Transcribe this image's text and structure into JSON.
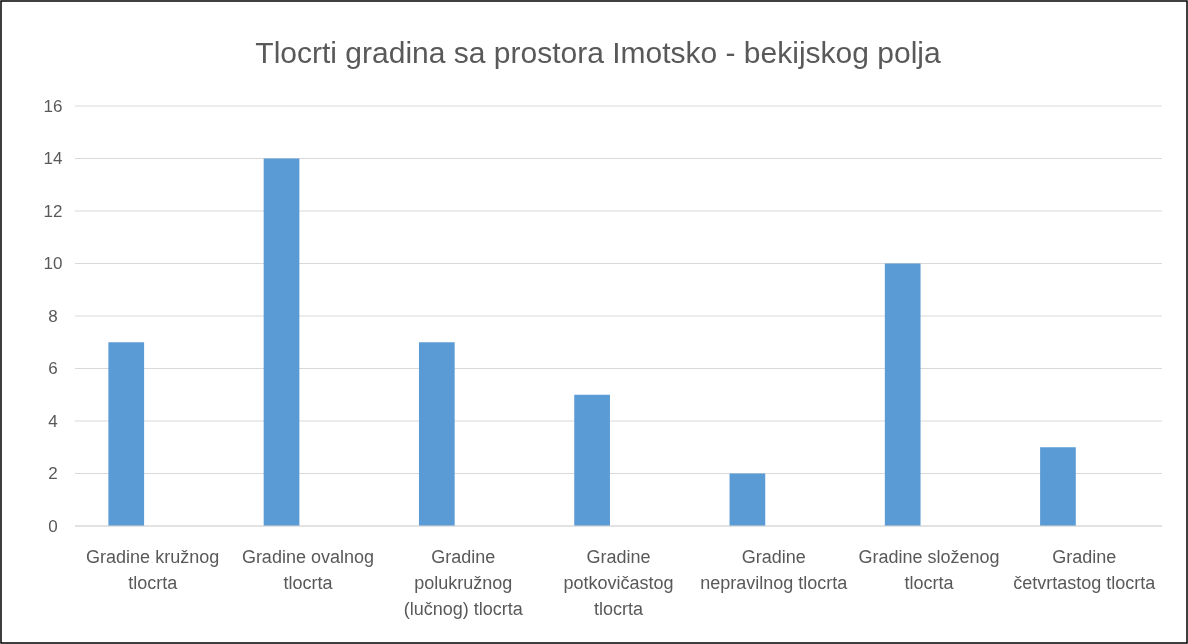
{
  "chart_data": {
    "type": "bar",
    "title": "Tlocrti gradina sa prostora Imotsko - bekijskog polja",
    "categories": [
      "Gradine kružnog tlocrta",
      "Gradine ovalnog tlocrta",
      "Gradine polukružnog (lučnog) tlocrta",
      "Gradine potkovičastog tlocrta",
      "Gradine nepravilnog tlocrta",
      "Gradine složenog tlocrta",
      "Gradine četvrtastog tlocrta"
    ],
    "values": [
      7,
      14,
      7,
      5,
      2,
      10,
      3
    ],
    "color": "#5b9bd5",
    "ylim": [
      0,
      16
    ],
    "yticks": [
      0,
      2,
      4,
      6,
      8,
      10,
      12,
      14,
      16
    ],
    "grid": "y"
  }
}
